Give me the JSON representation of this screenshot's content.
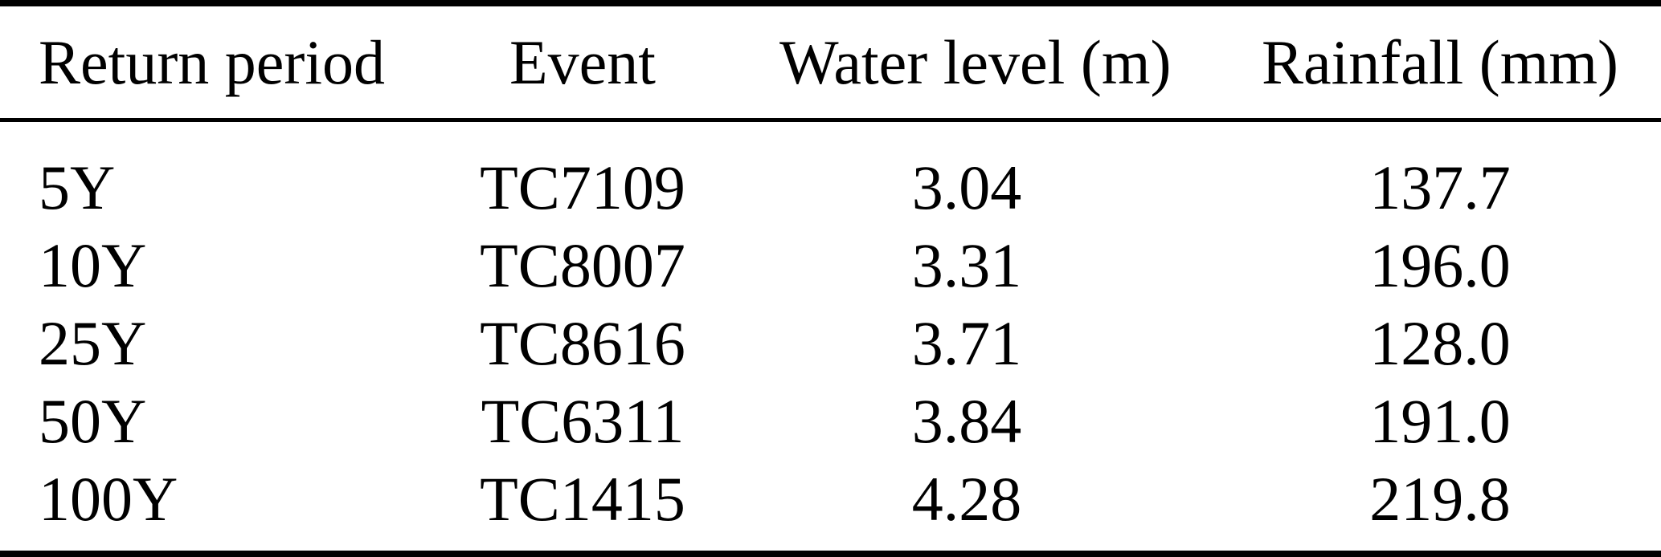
{
  "colors": {
    "background": "#ffffff",
    "text": "#000000",
    "rule": "#000000"
  },
  "table": {
    "columns": {
      "return_period": "Return period",
      "event": "Event",
      "water_level": "Water level (m)",
      "rainfall": "Rainfall (mm)"
    },
    "rows": [
      {
        "return_period": "5Y",
        "event": "TC7109",
        "water_level": "3.04",
        "rainfall": "137.7"
      },
      {
        "return_period": "10Y",
        "event": "TC8007",
        "water_level": "3.31",
        "rainfall": "196.0"
      },
      {
        "return_period": "25Y",
        "event": "TC8616",
        "water_level": "3.71",
        "rainfall": "128.0"
      },
      {
        "return_period": "50Y",
        "event": "TC6311",
        "water_level": "3.84",
        "rainfall": "191.0"
      },
      {
        "return_period": "100Y",
        "event": "TC1415",
        "water_level": "4.28",
        "rainfall": "219.8"
      }
    ]
  }
}
